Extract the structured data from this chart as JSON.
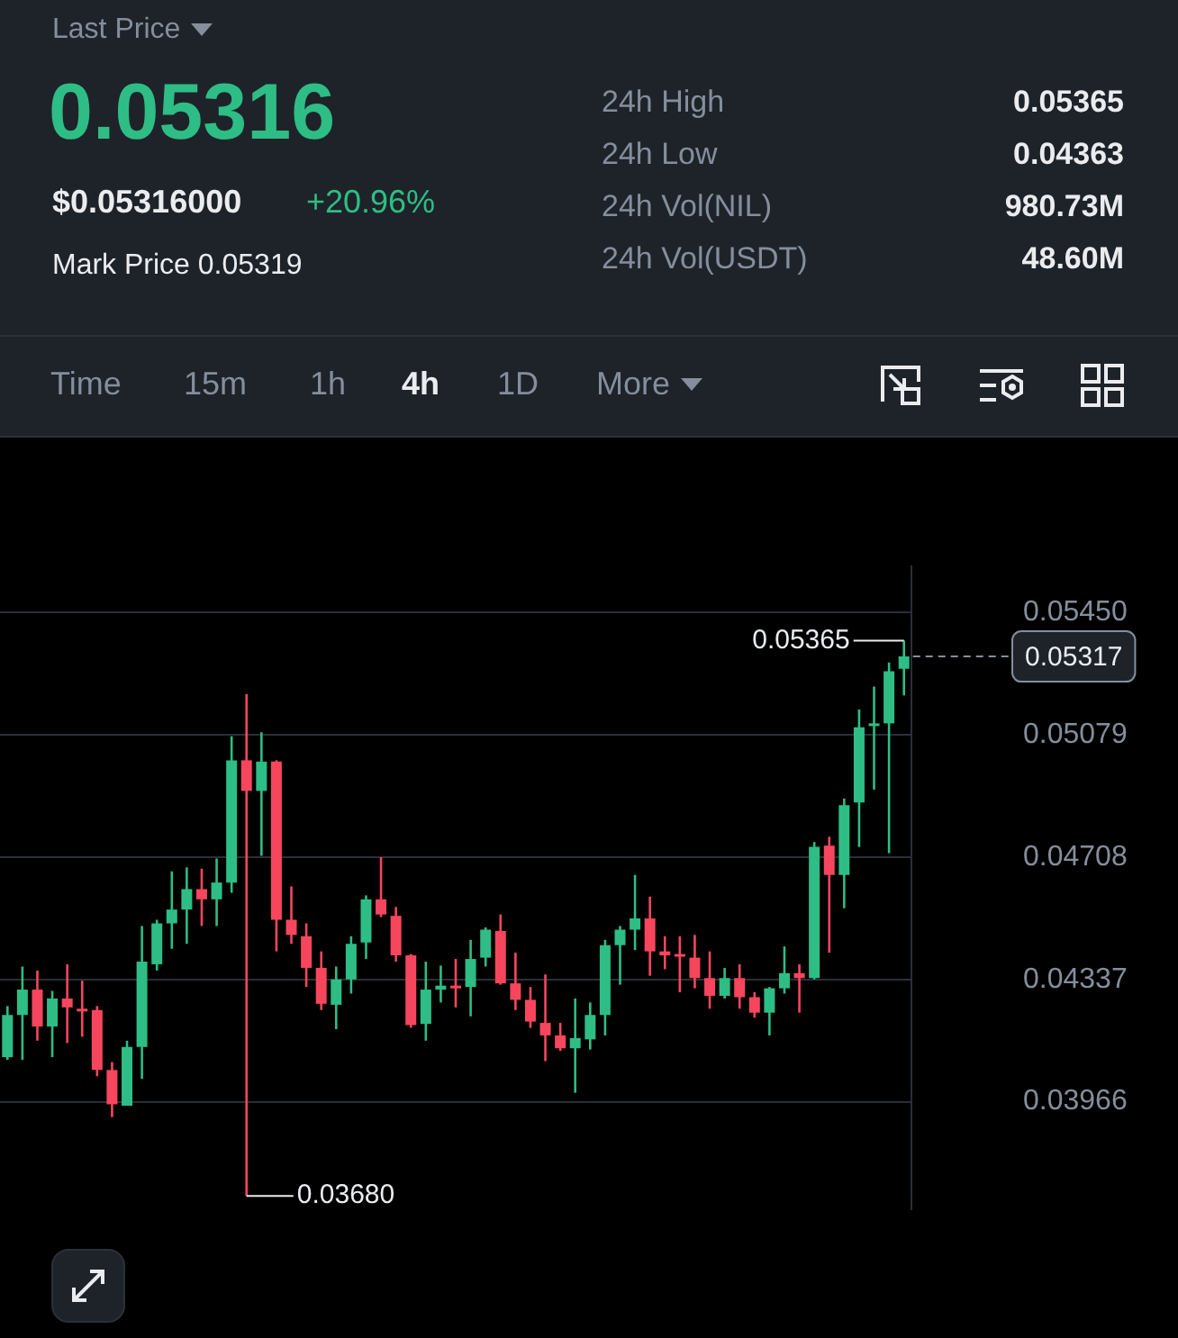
{
  "chart_data": [
    {
      "type": "other",
      "title": "Last Price",
      "subtitle": "0.05316",
      "annotations": [
        "$0.05316000",
        "+20.96%",
        "Mark Price 0.05319",
        "24h High",
        "0.05365",
        "24h Low",
        "0.04363",
        "24h Vol(NIL)",
        "980.73M",
        "24h Vol(USDT)",
        "48.60M",
        "Time",
        "15m",
        "1h",
        "4h",
        "1D",
        "More"
      ]
    },
    {
      "type": "candlestick",
      "categories": [
        null,
        null,
        null,
        null,
        null,
        null,
        null,
        null,
        null,
        null,
        null,
        null,
        null,
        null,
        null,
        null,
        null,
        null,
        null,
        null,
        null,
        null,
        null,
        null,
        null,
        null,
        null,
        null,
        null,
        null,
        null,
        null,
        null,
        null,
        null,
        null,
        null,
        null,
        null,
        null,
        null,
        null,
        null,
        null,
        null,
        null,
        null,
        null,
        null,
        null,
        null,
        null,
        null,
        null,
        null,
        null,
        null,
        null,
        null,
        null,
        null
      ],
      "ohlc": [
        [
          0.04101,
          0.04256,
          0.04093,
          0.04229
        ],
        [
          0.04229,
          0.04376,
          0.04093,
          0.04306
        ],
        [
          0.04306,
          0.04364,
          0.04151,
          0.04194
        ],
        [
          0.04194,
          0.04302,
          0.04101,
          0.04279
        ],
        [
          0.04279,
          0.04383,
          0.04144,
          0.04252
        ],
        [
          0.04248,
          0.04333,
          0.04163,
          0.0424
        ],
        [
          0.04244,
          0.04256,
          0.04043,
          0.04062
        ],
        [
          0.04062,
          0.04086,
          0.03919,
          0.03958
        ],
        [
          0.03954,
          0.04151,
          0.03954,
          0.04132
        ],
        [
          0.04132,
          0.04499,
          0.04035,
          0.04391
        ],
        [
          0.04383,
          0.04518,
          0.04364,
          0.04507
        ],
        [
          0.04507,
          0.04665,
          0.0443,
          0.04549
        ],
        [
          0.04549,
          0.04677,
          0.04445,
          0.04611
        ],
        [
          0.04611,
          0.04673,
          0.04499,
          0.0458
        ],
        [
          0.0458,
          0.04704,
          0.04499,
          0.04631
        ],
        [
          0.04631,
          0.05075,
          0.046,
          0.05002
        ],
        [
          0.05002,
          0.05203,
          0.0368,
          0.04909
        ],
        [
          0.04909,
          0.05087,
          0.04712,
          0.04998
        ],
        [
          0.04998,
          0.05002,
          0.04422,
          0.04518
        ],
        [
          0.04518,
          0.04619,
          0.04445,
          0.04472
        ],
        [
          0.04468,
          0.04507,
          0.04314,
          0.04372
        ],
        [
          0.04372,
          0.04422,
          0.04244,
          0.04263
        ],
        [
          0.0426,
          0.04376,
          0.04186,
          0.04337
        ],
        [
          0.04337,
          0.04468,
          0.04294,
          0.04445
        ],
        [
          0.04449,
          0.04592,
          0.04399,
          0.0458
        ],
        [
          0.0458,
          0.04708,
          0.04526,
          0.04534
        ],
        [
          0.0453,
          0.04557,
          0.04391,
          0.0441
        ],
        [
          0.0441,
          0.04414,
          0.0419,
          0.04198
        ],
        [
          0.04202,
          0.04391,
          0.04151,
          0.04306
        ],
        [
          0.04306,
          0.04379,
          0.04267,
          0.04318
        ],
        [
          0.04318,
          0.04399,
          0.04252,
          0.0431
        ],
        [
          0.04314,
          0.04457,
          0.04225,
          0.04399
        ],
        [
          0.04403,
          0.04495,
          0.04376,
          0.04488
        ],
        [
          0.04484,
          0.04534,
          0.04321,
          0.04325
        ],
        [
          0.04325,
          0.04418,
          0.04244,
          0.04275
        ],
        [
          0.04275,
          0.04314,
          0.0419,
          0.04209
        ],
        [
          0.04205,
          0.04352,
          0.04089,
          0.04167
        ],
        [
          0.04167,
          0.04205,
          0.0412,
          0.04128
        ],
        [
          0.04128,
          0.04279,
          0.03993,
          0.04159
        ],
        [
          0.04155,
          0.04267,
          0.04124,
          0.04229
        ],
        [
          0.04229,
          0.04457,
          0.04167,
          0.04441
        ],
        [
          0.04441,
          0.04499,
          0.04321,
          0.04488
        ],
        [
          0.04488,
          0.04654,
          0.04426,
          0.04522
        ],
        [
          0.04522,
          0.04588,
          0.04348,
          0.04422
        ],
        [
          0.04422,
          0.04468,
          0.04368,
          0.0441
        ],
        [
          0.04414,
          0.04468,
          0.04298,
          0.04406
        ],
        [
          0.04403,
          0.04472,
          0.0431,
          0.04341
        ],
        [
          0.04341,
          0.04422,
          0.04248,
          0.04287
        ],
        [
          0.04287,
          0.04372,
          0.04279,
          0.04341
        ],
        [
          0.04341,
          0.04383,
          0.04248,
          0.04283
        ],
        [
          0.04283,
          0.04298,
          0.04221,
          0.04236
        ],
        [
          0.04236,
          0.04314,
          0.04167,
          0.0431
        ],
        [
          0.0431,
          0.04437,
          0.04294,
          0.04356
        ],
        [
          0.04356,
          0.04383,
          0.04236,
          0.04341
        ],
        [
          0.04341,
          0.04754,
          0.04337,
          0.04739
        ],
        [
          0.04743,
          0.0477,
          0.04418,
          0.04654
        ],
        [
          0.04654,
          0.04886,
          0.04553,
          0.04866
        ],
        [
          0.04874,
          0.05156,
          0.04739,
          0.05102
        ],
        [
          0.0511,
          0.05226,
          0.04913,
          0.05114
        ],
        [
          0.05114,
          0.05299,
          0.0472,
          0.05272
        ],
        [
          0.0528,
          0.05365,
          0.05199,
          0.05317
        ]
      ],
      "ylim": [
        0.0364,
        0.0559
      ],
      "yticks": [
        {
          "value": 0.0545,
          "label": "0.05450"
        },
        {
          "value": 0.05079,
          "label": "0.05079"
        },
        {
          "value": 0.04708,
          "label": "0.04708"
        },
        {
          "value": 0.04337,
          "label": "0.04337"
        },
        {
          "value": 0.03966,
          "label": "0.03966"
        }
      ],
      "grid": "y",
      "tick_labels": "y",
      "ref_lines": [
        {
          "axis": "y",
          "value": 0.05317,
          "label": "0.05317",
          "line_style": "dashed"
        }
      ],
      "annotations": [
        "0.05365",
        "0.03680"
      ]
    }
  ]
}
